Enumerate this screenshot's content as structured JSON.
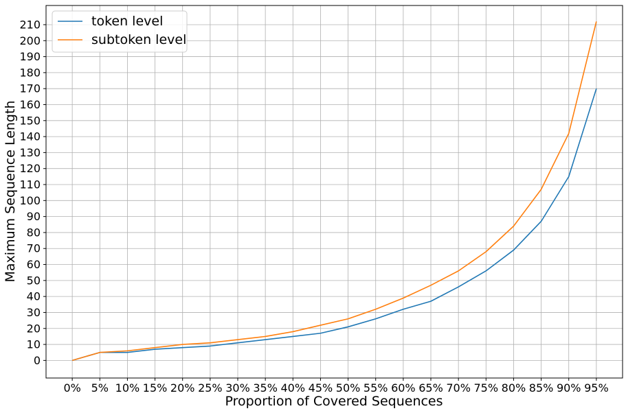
{
  "chart_data": {
    "type": "line",
    "categories": [
      "0%",
      "5%",
      "10%",
      "15%",
      "20%",
      "25%",
      "30%",
      "35%",
      "40%",
      "45%",
      "50%",
      "55%",
      "60%",
      "65%",
      "70%",
      "75%",
      "80%",
      "85%",
      "90%",
      "95%"
    ],
    "series": [
      {
        "name": "token level",
        "color": "#1f77b4",
        "values": [
          0,
          5,
          5,
          7,
          8,
          9,
          11,
          13,
          15,
          17,
          21,
          26,
          32,
          37,
          46,
          56,
          69,
          87,
          115,
          170
        ]
      },
      {
        "name": "subtoken level",
        "color": "#ff7f0e",
        "values": [
          0,
          5,
          6,
          8,
          10,
          11,
          13,
          15,
          18,
          22,
          26,
          32,
          39,
          47,
          56,
          68,
          84,
          107,
          142,
          212
        ]
      }
    ],
    "xlabel": "Proportion of Covered Sequences",
    "ylabel": "Maximum Sequence Length",
    "ylim": [
      -11,
      222
    ],
    "yticks": [
      0,
      10,
      20,
      30,
      40,
      50,
      60,
      70,
      80,
      90,
      100,
      110,
      120,
      130,
      140,
      150,
      160,
      170,
      180,
      190,
      200,
      210
    ],
    "grid": true,
    "legend": "top-left"
  }
}
